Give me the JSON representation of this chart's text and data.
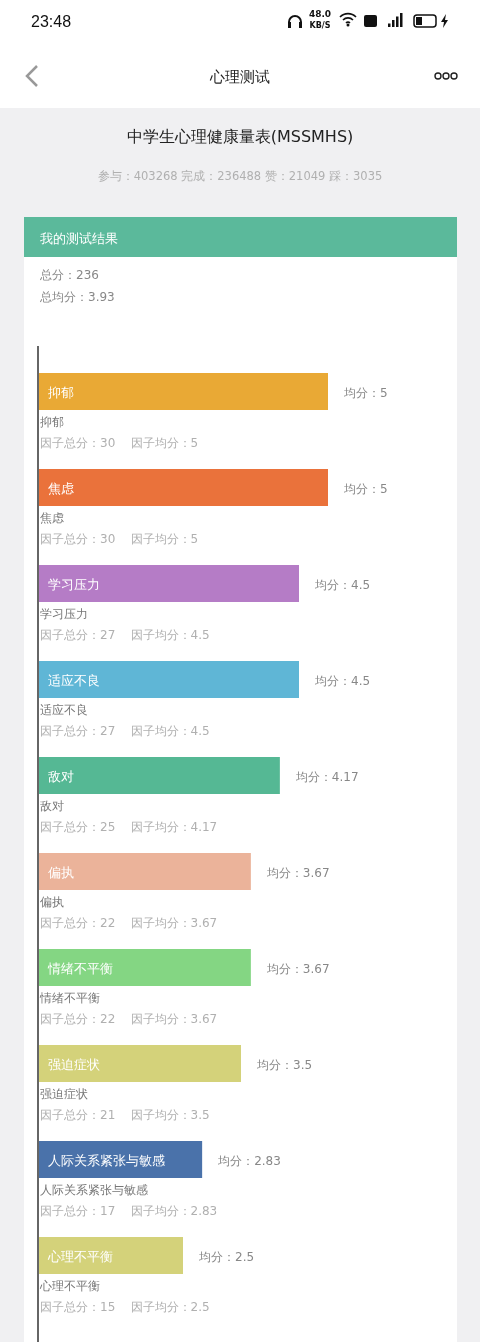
{
  "chart_data": {
    "type": "bar",
    "orientation": "horizontal",
    "title": "中学生心理健康量表(MSSMHS)",
    "subtitle": "参与：403268 完成：236488 赞：21049 踩：3035",
    "categories": [
      "抑郁",
      "焦虑",
      "学习压力",
      "适应不良",
      "敌对",
      "偏执",
      "情绪不平衡",
      "强迫症状",
      "人际关系紧张与敏感",
      "心理不平衡"
    ],
    "values": [
      5,
      5,
      4.5,
      4.5,
      4.17,
      3.67,
      3.67,
      3.5,
      2.83,
      2.5
    ],
    "colors": [
      "#e9a935",
      "#ea723b",
      "#b57cc6",
      "#5fb6d6",
      "#55b894",
      "#ebb39a",
      "#84d683",
      "#d4d27a",
      "#4a72aa",
      "#d4d27a"
    ],
    "value_labels": [
      "均分：5",
      "均分：5",
      "均分：4.5",
      "均分：4.5",
      "均分：4.17",
      "均分：3.67",
      "均分：3.67",
      "均分：3.5",
      "均分：2.83",
      "均分：2.5"
    ],
    "annotations": [
      "23:48",
      "48.0",
      "KB/S",
      "心理测试",
      "我的测试结果",
      "总分：236",
      "总均分：3.93",
      "因子总分：30    因子均分：5",
      "因子总分：30    因子均分：5",
      "因子总分：27    因子均分：4.5",
      "因子总分：27    因子均分：4.5",
      "因子总分：25    因子均分：4.17",
      "因子总分：22    因子均分：3.67",
      "因子总分：22    因子均分：3.67",
      "因子总分：21    因子均分：3.5",
      "因子总分：17    因子均分：2.83",
      "因子总分：15    因子均分：2.5"
    ]
  }
}
